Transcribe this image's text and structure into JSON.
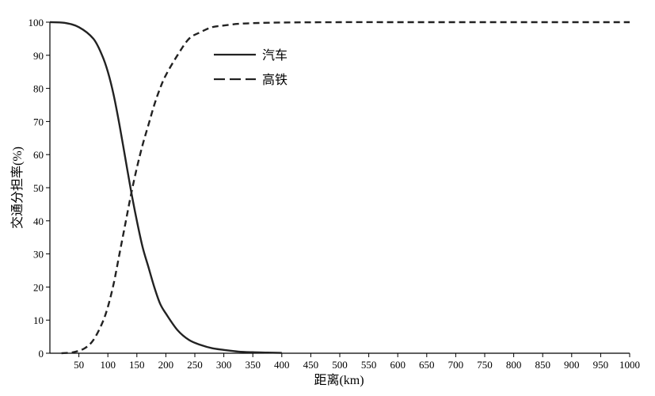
{
  "chart_data": {
    "type": "line",
    "xlabel": "距离(km)",
    "ylabel": "交通分担率(%)",
    "x_tick_labels": [
      "50",
      "100",
      "150",
      "200",
      "250",
      "300",
      "350",
      "400",
      "450",
      "500",
      "550",
      "600",
      "650",
      "700",
      "750",
      "800",
      "850",
      "900",
      "950",
      "1000"
    ],
    "y_tick_labels": [
      "0",
      "10",
      "20",
      "30",
      "40",
      "50",
      "60",
      "70",
      "80",
      "90",
      "100"
    ],
    "xlim": [
      0,
      1000
    ],
    "ylim": [
      0,
      100
    ],
    "legend_position": "top-left",
    "grid": false,
    "series": [
      {
        "name": "汽车",
        "line_style": "solid",
        "color": "#222222",
        "x": [
          0,
          25,
          50,
          75,
          90,
          100,
          110,
          120,
          130,
          140,
          150,
          160,
          170,
          180,
          190,
          200,
          220,
          240,
          260,
          280,
          300,
          325,
          350,
          375,
          400
        ],
        "y": [
          100,
          99.8,
          98.5,
          95,
          90,
          85,
          78,
          69,
          59,
          49,
          40,
          32,
          26,
          20,
          15,
          12,
          7,
          4,
          2.5,
          1.5,
          1,
          0.5,
          0.3,
          0.2,
          0.1
        ]
      },
      {
        "name": "高铁",
        "line_style": "dashed",
        "color": "#222222",
        "x": [
          20,
          40,
          60,
          75,
          90,
          100,
          110,
          120,
          130,
          140,
          150,
          160,
          170,
          180,
          190,
          200,
          220,
          240,
          260,
          280,
          300,
          325,
          350,
          400,
          500,
          600,
          700,
          800,
          900,
          1000
        ],
        "y": [
          0,
          0.3,
          1.5,
          4,
          9,
          14,
          21,
          30,
          39,
          48,
          56,
          63,
          69,
          75,
          80,
          84,
          90,
          95,
          97,
          98.5,
          99,
          99.5,
          99.7,
          99.9,
          100,
          100,
          100,
          100,
          100,
          100
        ]
      }
    ]
  }
}
